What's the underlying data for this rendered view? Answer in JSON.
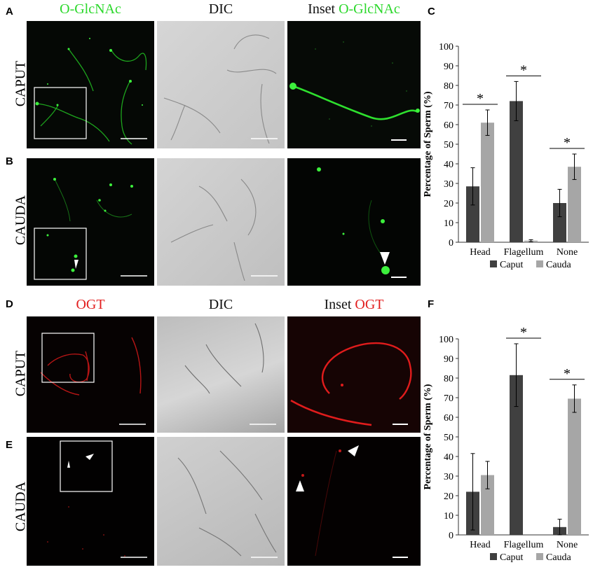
{
  "panels": {
    "A": "A",
    "B": "B",
    "C": "C",
    "D": "D",
    "E": "E",
    "F": "F"
  },
  "top": {
    "col1_title": "O-GlcNAc",
    "col2_title": "DIC",
    "col3_prefix": "Inset ",
    "col3_stain": "O-GlcNAc",
    "row1_label": "CAPUT",
    "row2_label": "CAUDA"
  },
  "bottom": {
    "col1_title": "OGT",
    "col2_title": "DIC",
    "col3_prefix": "Inset ",
    "col3_stain": "OGT",
    "row1_label": "CAPUT",
    "row2_label": "CAUDA"
  },
  "colors": {
    "caput": "#404040",
    "cauda": "#a6a6a6",
    "green_stain": "#2bd82b",
    "red_stain": "#e21d1d"
  },
  "chart_data": [
    {
      "type": "bar",
      "categories": [
        "Head",
        "Flagellum",
        "None"
      ],
      "series": [
        {
          "name": "Caput",
          "values": [
            28.5,
            72,
            20
          ],
          "errors": [
            9.5,
            10,
            7
          ]
        },
        {
          "name": "Cauda",
          "values": [
            61,
            0.8,
            38.5
          ],
          "errors": [
            6.5,
            0.5,
            6.5
          ]
        }
      ],
      "significance": [
        "*",
        "*",
        "*"
      ],
      "ylabel": "Percentage of Sperm (%)",
      "ylim": [
        0,
        100
      ],
      "yticks": [
        0,
        10,
        20,
        30,
        40,
        50,
        60,
        70,
        80,
        90,
        100
      ],
      "legend": "bottom",
      "grid": false
    },
    {
      "type": "bar",
      "categories": [
        "Head",
        "Flagellum",
        "None"
      ],
      "series": [
        {
          "name": "Caput",
          "values": [
            22,
            81.5,
            4
          ],
          "errors": [
            19.5,
            16,
            4
          ]
        },
        {
          "name": "Cauda",
          "values": [
            30.5,
            0,
            69.5
          ],
          "errors": [
            7,
            0,
            7
          ]
        }
      ],
      "significance": [
        "",
        "*",
        "*"
      ],
      "ylabel": "Percentage of Sperm (%)",
      "ylim": [
        0,
        100
      ],
      "yticks": [
        0,
        10,
        20,
        30,
        40,
        50,
        60,
        70,
        80,
        90,
        100
      ],
      "legend": "bottom",
      "grid": false
    }
  ]
}
